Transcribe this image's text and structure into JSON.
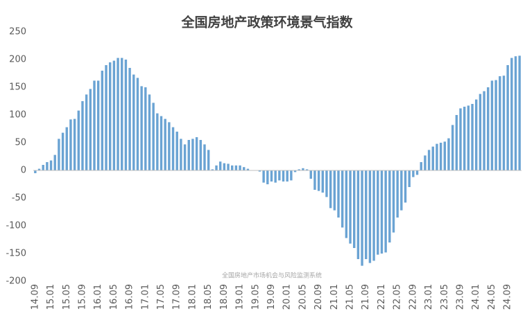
{
  "chart_data": {
    "type": "bar",
    "title": "全国房地产政策环境景气指数",
    "annotation": "全国房地产市场机会与风险监测系统",
    "categories": [
      "14.09",
      null,
      null,
      null,
      "15.01",
      null,
      null,
      null,
      "15.05",
      null,
      null,
      null,
      "15.09",
      null,
      null,
      null,
      "16.01",
      null,
      null,
      null,
      "16.05",
      null,
      null,
      null,
      "16.09",
      null,
      null,
      null,
      "17.01",
      null,
      null,
      null,
      "17.05",
      null,
      null,
      null,
      "17.09",
      null,
      null,
      null,
      "18.01",
      null,
      null,
      null,
      "18.05",
      null,
      null,
      null,
      "18.09",
      null,
      null,
      null,
      "19.01",
      null,
      null,
      null,
      "19.05",
      null,
      null,
      null,
      "19.09",
      null,
      null,
      null,
      "20.01",
      null,
      null,
      null,
      "20.05",
      null,
      null,
      null,
      "20.09",
      null,
      null,
      null,
      "21.01",
      null,
      null,
      null,
      "21.05",
      null,
      null,
      null,
      "21.09",
      null,
      null,
      null,
      "22.01",
      null,
      null,
      null,
      "22.05",
      null,
      null,
      null,
      "22.09",
      null,
      null,
      null,
      "23.01",
      null,
      null,
      null,
      "23.05",
      null,
      null,
      null,
      "23.09",
      null,
      null,
      null,
      "24.01",
      null,
      null,
      null,
      "24.05",
      null,
      null,
      null,
      "24.09",
      null,
      null,
      null
    ],
    "values": [
      -5,
      3,
      10,
      15,
      18,
      28,
      57,
      68,
      78,
      92,
      93,
      108,
      125,
      137,
      147,
      162,
      162,
      180,
      190,
      195,
      198,
      203,
      203,
      200,
      185,
      173,
      167,
      152,
      150,
      137,
      122,
      103,
      98,
      93,
      87,
      78,
      70,
      57,
      47,
      55,
      57,
      60,
      55,
      47,
      37,
      2,
      9,
      16,
      13,
      12,
      9,
      9,
      9,
      6,
      3,
      0,
      0,
      -2,
      -22,
      -25,
      -20,
      -22,
      -18,
      -20,
      -20,
      -18,
      -3,
      2,
      4,
      2,
      -15,
      -35,
      -37,
      -40,
      -48,
      -68,
      -72,
      -85,
      -103,
      -122,
      -132,
      -140,
      -160,
      -172,
      -160,
      -167,
      -163,
      -152,
      -150,
      -148,
      -130,
      -112,
      -85,
      -72,
      -58,
      -30,
      -12,
      -8,
      15,
      27,
      37,
      43,
      48,
      50,
      52,
      58,
      82,
      100,
      112,
      115,
      117,
      120,
      128,
      138,
      143,
      150,
      162,
      163,
      170,
      171,
      190,
      203,
      206,
      207
    ],
    "color": "#6aa3d3",
    "ylim": [
      -200,
      250
    ],
    "yticks": [
      -200,
      -150,
      -100,
      -50,
      0,
      50,
      100,
      150,
      200,
      250
    ],
    "grid": false
  }
}
